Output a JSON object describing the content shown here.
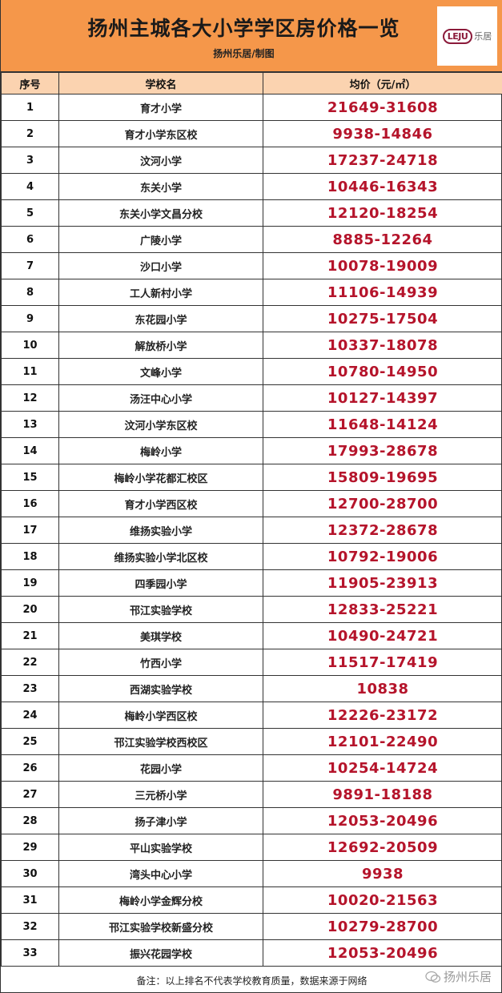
{
  "header": {
    "title": "扬州主城各大小学学区房价格一览",
    "subtitle": "扬州乐居/制图",
    "logo_mark": "LEJU",
    "logo_text": "乐居"
  },
  "table": {
    "columns": [
      "序号",
      "学校名",
      "均价（元/㎡）"
    ],
    "rows": [
      {
        "no": "1",
        "name": "育才小学",
        "price": "21649-31608"
      },
      {
        "no": "2",
        "name": "育才小学东区校",
        "price": "9938-14846"
      },
      {
        "no": "3",
        "name": "汶河小学",
        "price": "17237-24718"
      },
      {
        "no": "4",
        "name": "东关小学",
        "price": "10446-16343"
      },
      {
        "no": "5",
        "name": "东关小学文昌分校",
        "price": "12120-18254"
      },
      {
        "no": "6",
        "name": "广陵小学",
        "price": "8885-12264"
      },
      {
        "no": "7",
        "name": "沙口小学",
        "price": "10078-19009"
      },
      {
        "no": "8",
        "name": "工人新村小学",
        "price": "11106-14939"
      },
      {
        "no": "9",
        "name": "东花园小学",
        "price": "10275-17504"
      },
      {
        "no": "10",
        "name": "解放桥小学",
        "price": "10337-18078"
      },
      {
        "no": "11",
        "name": "文峰小学",
        "price": "10780-14950"
      },
      {
        "no": "12",
        "name": "汤汪中心小学",
        "price": "10127-14397"
      },
      {
        "no": "13",
        "name": "汶河小学东区校",
        "price": "11648-14124"
      },
      {
        "no": "14",
        "name": "梅岭小学",
        "price": "17993-28678"
      },
      {
        "no": "15",
        "name": "梅岭小学花都汇校区",
        "price": "15809-19695"
      },
      {
        "no": "16",
        "name": "育才小学西区校",
        "price": "12700-28700"
      },
      {
        "no": "17",
        "name": "维扬实验小学",
        "price": "12372-28678"
      },
      {
        "no": "18",
        "name": "维扬实验小学北区校",
        "price": "10792-19006"
      },
      {
        "no": "19",
        "name": "四季园小学",
        "price": "11905-23913"
      },
      {
        "no": "20",
        "name": "邗江实验学校",
        "price": "12833-25221"
      },
      {
        "no": "21",
        "name": "美琪学校",
        "price": "10490-24721"
      },
      {
        "no": "22",
        "name": "竹西小学",
        "price": "11517-17419"
      },
      {
        "no": "23",
        "name": "西湖实验学校",
        "price": "10838"
      },
      {
        "no": "24",
        "name": "梅岭小学西区校",
        "price": "12226-23172"
      },
      {
        "no": "25",
        "name": "邗江实验学校西校区",
        "price": "12101-22490"
      },
      {
        "no": "26",
        "name": "花园小学",
        "price": "10254-14724"
      },
      {
        "no": "27",
        "name": "三元桥小学",
        "price": "9891-18188"
      },
      {
        "no": "28",
        "name": "扬子津小学",
        "price": "12053-20496"
      },
      {
        "no": "29",
        "name": "平山实验学校",
        "price": "12692-20509"
      },
      {
        "no": "30",
        "name": "湾头中心小学",
        "price": "9938"
      },
      {
        "no": "31",
        "name": "梅岭小学金辉分校",
        "price": "10020-21563"
      },
      {
        "no": "32",
        "name": "邗江实验学校新盛分校",
        "price": "10279-28700"
      },
      {
        "no": "33",
        "name": "振兴花园学校",
        "price": "12053-20496"
      }
    ]
  },
  "footer": {
    "note": "备注：以上排名不代表学校教育质量，数据来源于网络",
    "watermark": "扬州乐居",
    "watermark_icon": "wechat-icon"
  },
  "colors": {
    "banner": "#f5974a",
    "header_row": "#fbd3b0",
    "price": "#b5142b"
  }
}
